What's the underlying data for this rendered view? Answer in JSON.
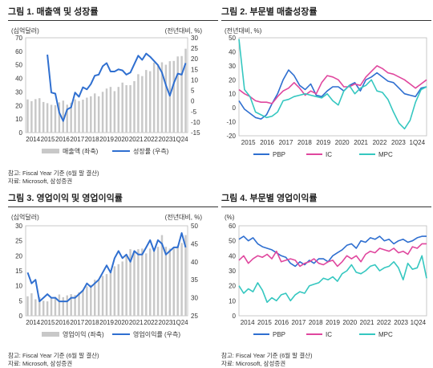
{
  "panels": [
    {
      "title": "그림 1. 매출액 및 성장률",
      "notes": [
        "참고: Fiscal Year 기준 (6월 말 결산)",
        "자료: Microsoft, 삼성증권"
      ],
      "chart_data": {
        "type": "bar",
        "yunit_left": "(십억달러)",
        "yunit_right": "(전년대비, %)",
        "xticks": [
          "2014",
          "2015",
          "2016",
          "2017",
          "2018",
          "2019",
          "2020",
          "2021",
          "2022",
          "2023",
          "1Q24"
        ],
        "ylim": [
          0,
          70
        ],
        "yticks": [
          0,
          10,
          20,
          30,
          40,
          50,
          60,
          70
        ],
        "y2lim": [
          -15,
          30
        ],
        "y2ticks": [
          -15,
          -10,
          -5,
          0,
          5,
          10,
          15,
          20,
          25,
          30
        ],
        "legend": [
          "매출액 (좌축)",
          "성장률 (우측)"
        ],
        "bars": [
          24.5,
          23.2,
          24.7,
          25.4,
          22.6,
          21.7,
          20.5,
          20.2,
          22.3,
          23.6,
          20.6,
          22.1,
          24.5,
          23.3,
          24.3,
          25.8,
          26.8,
          28.9,
          26.8,
          30.1,
          32.5,
          33.7,
          30.6,
          33.7,
          36.9,
          35.0,
          35.0,
          38.0,
          43.1,
          41.7,
          46.2,
          45.3,
          51.7,
          49.4,
          51.9,
          50.1,
          52.7,
          52.9,
          56.2,
          56.5,
          61.9
        ],
        "line": [
          null,
          null,
          null,
          null,
          null,
          22.0,
          4.0,
          3.5,
          -5.5,
          -9.5,
          -4.0,
          -3.0,
          4.0,
          2.0,
          6.5,
          5.5,
          8.0,
          12.0,
          12.5,
          16.5,
          18.0,
          14.0,
          14.0,
          15.0,
          14.5,
          12.5,
          13.5,
          17.5,
          21.5,
          19.5,
          22.5,
          21.0,
          19.0,
          17.0,
          13.5,
          7.5,
          2.5,
          8.5,
          13.0,
          12.5,
          18.0
        ]
      }
    },
    {
      "title": "그림 2. 부문별 매출성장률",
      "notes": [],
      "chart_data": {
        "type": "line",
        "yunit": "(전년대비, %)",
        "xticks": [
          "2015",
          "2016",
          "2017",
          "2018",
          "2019",
          "2020",
          "2021",
          "2022",
          "2023",
          "1Q24"
        ],
        "ylim": [
          -20,
          50
        ],
        "yticks": [
          -20,
          -10,
          0,
          10,
          20,
          30,
          40,
          50
        ],
        "series": [
          {
            "name": "PBP",
            "color": "#2f6fd0",
            "values": [
              5,
              -1,
              -4,
              -7,
              -8,
              -5,
              3,
              10,
              20,
              27,
              23,
              16,
              13,
              17,
              9,
              8,
              12,
              15,
              15,
              12,
              16,
              18,
              12,
              20,
              22,
              25,
              22,
              19,
              18,
              14,
              10,
              9,
              8,
              14,
              15
            ]
          },
          {
            "name": "IC",
            "color": "#e0479e",
            "values": [
              13,
              10,
              8,
              5,
              4,
              4,
              3,
              8,
              12,
              14,
              18,
              14,
              9,
              12,
              10,
              18,
              23,
              22,
              20,
              15,
              15,
              17,
              16,
              22,
              26,
              30,
              28,
              25,
              24,
              22,
              20,
              17,
              14,
              17,
              20
            ]
          },
          {
            "name": "MPC",
            "color": "#35c7c0",
            "values": [
              49,
              13,
              8,
              -3,
              -5,
              -7,
              -6,
              -3,
              5,
              6,
              8,
              9,
              10,
              9,
              8,
              7,
              10,
              5,
              2,
              12,
              16,
              10,
              14,
              16,
              20,
              12,
              11,
              6,
              -3,
              -11,
              -15,
              -9,
              4,
              13,
              15
            ]
          }
        ]
      }
    },
    {
      "title": "그림 3. 영업이익 및 영업이익률",
      "notes": [
        "참고: Fiscal Year 기준 (6월 말 결산)",
        "자료: Microsoft, 삼성증권"
      ],
      "chart_data": {
        "type": "bar",
        "yunit_left": "(십억달러)",
        "yunit_right": "(전년대비, %)",
        "xticks": [
          "2014",
          "2015",
          "2016",
          "2017",
          "2018",
          "2019",
          "2020",
          "2021",
          "2022",
          "2023",
          "1Q24"
        ],
        "ylim": [
          0,
          30
        ],
        "yticks": [
          0,
          5,
          10,
          15,
          20,
          25,
          30
        ],
        "y2lim": [
          25,
          50
        ],
        "y2ticks": [
          25,
          30,
          35,
          40,
          45,
          50
        ],
        "legend": [
          "영업이익 (좌축)",
          "영업이익률 (우측)"
        ],
        "bars": [
          6.5,
          7.5,
          5.5,
          6.2,
          5.0,
          4.8,
          5.9,
          6.3,
          7.1,
          6.2,
          6.8,
          7.2,
          6.9,
          7.8,
          8.6,
          9.8,
          10.3,
          12.0,
          12.0,
          13.3,
          13.9,
          15.2,
          16.5,
          17.2,
          18.1,
          20.2,
          22.2,
          21.5,
          22.2,
          22.4,
          20.8,
          22.4,
          21.5,
          23.0,
          26.9,
          23.0,
          22.4,
          22.4,
          23.4,
          24.3,
          26.9
        ],
        "line": [
          37,
          34,
          35,
          29,
          30,
          31,
          30,
          30,
          29,
          29,
          29,
          30,
          30,
          31,
          32,
          34,
          33,
          34,
          35,
          37,
          39,
          37,
          41,
          43,
          41,
          42,
          40,
          43,
          42,
          42,
          44,
          46,
          43,
          46,
          45,
          42,
          43,
          44,
          44,
          48,
          44
        ]
      }
    },
    {
      "title": "그림 4. 부문별 영업이익률",
      "notes": [
        "참고: Fiscal Year 기준 (6월 말 결산)",
        "자료: Microsoft, 삼성증권"
      ],
      "chart_data": {
        "type": "line",
        "yunit": "(%)",
        "xticks": [
          "2014",
          "2015",
          "2016",
          "2017",
          "2018",
          "2019",
          "2020",
          "2021",
          "2022",
          "2023",
          "1Q24"
        ],
        "ylim": [
          0,
          60
        ],
        "yticks": [
          0,
          10,
          20,
          30,
          40,
          50,
          60
        ],
        "series": [
          {
            "name": "PBP",
            "color": "#2f6fd0",
            "values": [
              51,
              53,
              50,
              52,
              48,
              46,
              45,
              44,
              42,
              40,
              39,
              35,
              33,
              36,
              34,
              37,
              35,
              38,
              38,
              36,
              40,
              42,
              44,
              47,
              48,
              45,
              50,
              49,
              52,
              51,
              53,
              50,
              51,
              48,
              50,
              51,
              49,
              50,
              52,
              53,
              53
            ]
          },
          {
            "name": "IC",
            "color": "#e0479e",
            "values": [
              37,
              40,
              35,
              38,
              40,
              39,
              41,
              38,
              43,
              36,
              37,
              38,
              37,
              33,
              35,
              36,
              38,
              35,
              34,
              36,
              37,
              33,
              36,
              40,
              38,
              40,
              36,
              41,
              43,
              42,
              45,
              44,
              43,
              45,
              42,
              43,
              41,
              46,
              45,
              48,
              48
            ]
          },
          {
            "name": "MPC",
            "color": "#35c7c0",
            "values": [
              20,
              15,
              18,
              16,
              22,
              17,
              9,
              12,
              10,
              14,
              15,
              10,
              14,
              16,
              15,
              20,
              21,
              22,
              25,
              24,
              26,
              23,
              28,
              30,
              34,
              29,
              28,
              30,
              33,
              34,
              30,
              32,
              33,
              36,
              32,
              24,
              35,
              31,
              32,
              40,
              25
            ]
          }
        ]
      }
    }
  ]
}
